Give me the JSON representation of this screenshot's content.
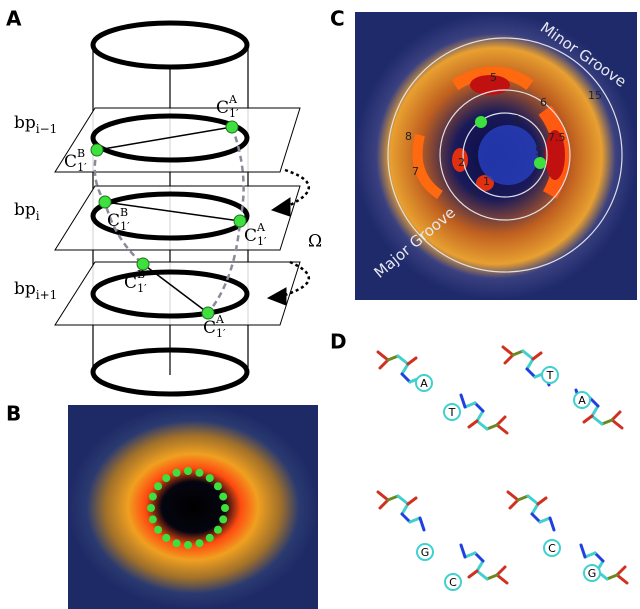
{
  "panels": {
    "a": {
      "label": "A",
      "bp_labels": [
        {
          "base": "bp",
          "sub": "i−1"
        },
        {
          "base": "bp",
          "sub": "i"
        },
        {
          "base": "bp",
          "sub": "i+1"
        }
      ],
      "atom_labels": [
        {
          "base": "C",
          "sup": "A",
          "sub": "1′"
        },
        {
          "base": "C",
          "sup": "B",
          "sub": "1′"
        },
        {
          "base": "C",
          "sup": "B",
          "sub": "1′"
        },
        {
          "base": "C",
          "sup": "A",
          "sub": "1′"
        },
        {
          "base": "C",
          "sup": "B",
          "sub": "1′"
        },
        {
          "base": "C",
          "sup": "A",
          "sub": "1′"
        }
      ],
      "omega": "Ω"
    },
    "b": {
      "label": "B"
    },
    "c": {
      "label": "C",
      "minor_groove": "Minor Groove",
      "major_groove": "Major Groove",
      "radius_labels": [
        "5",
        "6",
        "3",
        "8",
        "7.5",
        "5",
        "2",
        "7",
        "1",
        "4",
        "15"
      ]
    },
    "d": {
      "label": "D",
      "bases": [
        "A",
        "T",
        "T",
        "A",
        "G",
        "C",
        "C",
        "G"
      ]
    }
  }
}
